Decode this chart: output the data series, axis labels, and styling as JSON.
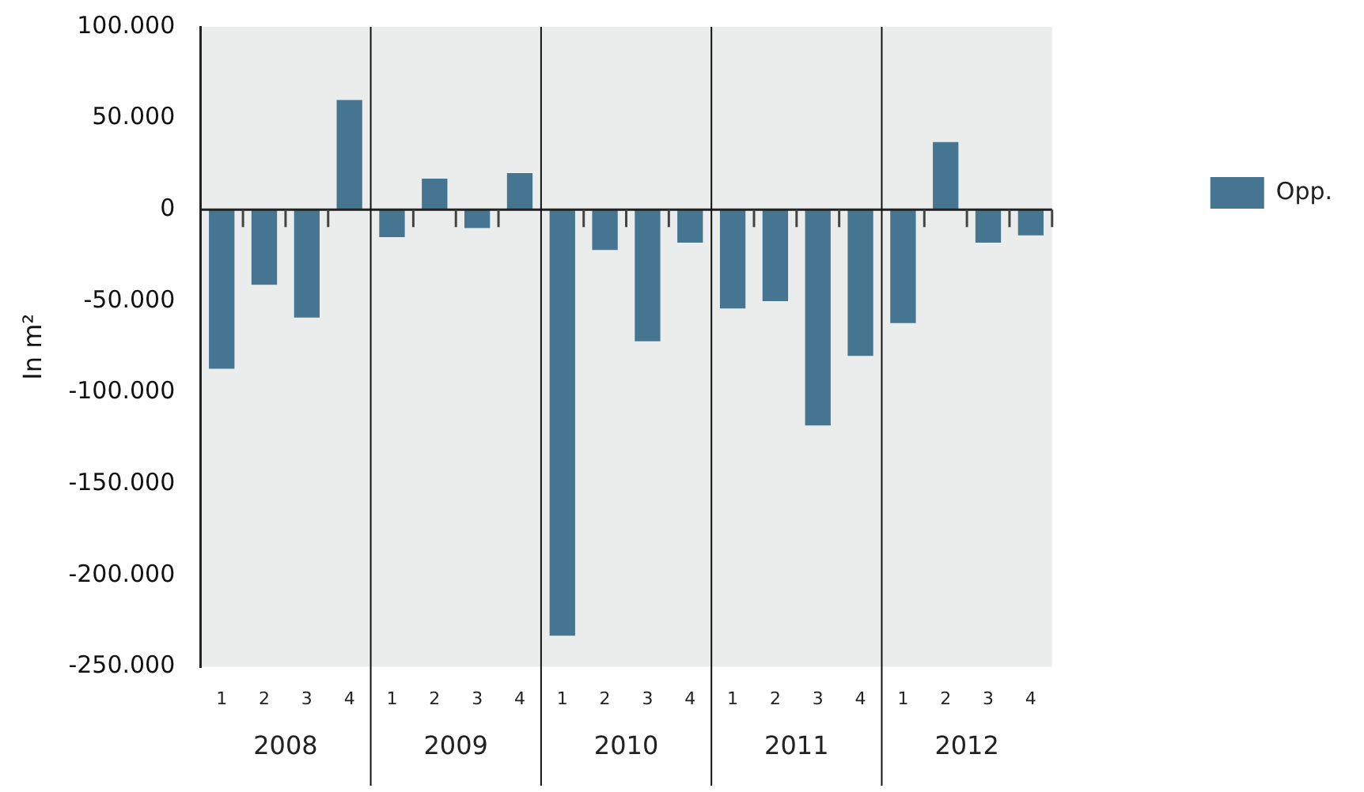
{
  "chart_data": {
    "type": "bar",
    "ylabel": "In m²",
    "categories": [
      "1",
      "2",
      "3",
      "4",
      "1",
      "2",
      "3",
      "4",
      "1",
      "2",
      "3",
      "4",
      "1",
      "2",
      "3",
      "4",
      "1",
      "2",
      "3",
      "4"
    ],
    "series": [
      {
        "name": "Opp.",
        "color": "#467592",
        "values": [
          -87000,
          -41000,
          -59000,
          60000,
          -15000,
          17000,
          -10000,
          20000,
          -233000,
          -22000,
          -72000,
          -18000,
          -54000,
          -50000,
          -118000,
          -80000,
          -62000,
          37000,
          -18000,
          -14000
        ]
      }
    ],
    "ylim": [
      -250000,
      100000
    ],
    "yticks": [
      {
        "value": -250000,
        "label": "-250.000"
      },
      {
        "value": -200000,
        "label": "-200.000"
      },
      {
        "value": -150000,
        "label": "-150.000"
      },
      {
        "value": -100000,
        "label": "-100.000"
      },
      {
        "value": -50000,
        "label": "-50.000"
      },
      {
        "value": 0,
        "label": "0"
      },
      {
        "value": 50000,
        "label": "50.000"
      },
      {
        "value": 100000,
        "label": "100.000"
      }
    ],
    "annotations": [
      "2008",
      "2009",
      "2010",
      "2011",
      "2012"
    ],
    "legend": "right",
    "grid": false
  }
}
